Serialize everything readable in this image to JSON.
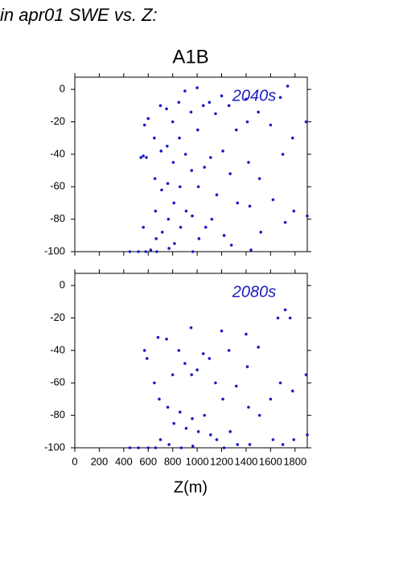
{
  "header": "in apr01 SWE vs. Z:",
  "title": "A1B",
  "chart_data": [
    {
      "type": "scatter",
      "annotation": "2040s",
      "color": "#1c1cc4",
      "xlim": [
        0,
        1900
      ],
      "ylim": [
        -100,
        7.5
      ],
      "yticks": [
        0,
        -20,
        -40,
        -60,
        -80,
        -100
      ],
      "x": [
        450,
        520,
        580,
        620,
        540,
        560,
        585,
        570,
        600,
        560,
        650,
        655,
        660,
        665,
        670,
        700,
        705,
        710,
        715,
        750,
        755,
        760,
        765,
        770,
        800,
        805,
        810,
        815,
        850,
        855,
        860,
        865,
        900,
        905,
        910,
        950,
        955,
        960,
        965,
        1000,
        1005,
        1010,
        1015,
        1050,
        1060,
        1070,
        1100,
        1110,
        1120,
        1150,
        1160,
        1200,
        1210,
        1220,
        1260,
        1270,
        1280,
        1320,
        1330,
        1400,
        1410,
        1420,
        1430,
        1440,
        1500,
        1510,
        1520,
        1600,
        1620,
        1680,
        1700,
        1720,
        1740,
        1780,
        1790,
        1890,
        1900
      ],
      "values": [
        -100,
        -100,
        -100,
        -99,
        -42,
        -41,
        -42,
        -22,
        -18,
        -85,
        -30,
        -55,
        -75,
        -92,
        -100,
        -10,
        -38,
        -62,
        -88,
        -12,
        -35,
        -58,
        -80,
        -98,
        -20,
        -45,
        -70,
        -95,
        -8,
        -30,
        -60,
        -85,
        -1,
        -40,
        -75,
        -14,
        -50,
        -78,
        -100,
        1,
        -25,
        -60,
        -92,
        -10,
        -48,
        -85,
        -8,
        -42,
        -80,
        -15,
        -65,
        -4,
        -38,
        -90,
        -10,
        -52,
        -96,
        -25,
        -70,
        -6,
        -20,
        -45,
        -72,
        -99,
        -14,
        -55,
        -88,
        -22,
        -68,
        -5,
        -40,
        -82,
        2,
        -30,
        -75,
        -20,
        -78
      ]
    },
    {
      "type": "scatter",
      "annotation": "2080s",
      "color": "#1c1cc4",
      "xlim": [
        0,
        1900
      ],
      "ylim": [
        -100,
        7.5
      ],
      "yticks": [
        0,
        -20,
        -40,
        -60,
        -80,
        -100
      ],
      "xticks": [
        0,
        200,
        400,
        600,
        800,
        1000,
        1200,
        1400,
        1600,
        1800
      ],
      "xlabel": "Z(m)",
      "x": [
        450,
        520,
        600,
        570,
        590,
        650,
        660,
        680,
        690,
        700,
        750,
        760,
        770,
        800,
        810,
        850,
        860,
        870,
        900,
        910,
        950,
        955,
        960,
        965,
        1000,
        1010,
        1050,
        1060,
        1100,
        1110,
        1150,
        1160,
        1200,
        1210,
        1220,
        1260,
        1270,
        1320,
        1330,
        1400,
        1410,
        1420,
        1430,
        1500,
        1510,
        1600,
        1620,
        1660,
        1680,
        1700,
        1720,
        1760,
        1780,
        1790,
        1890,
        1900
      ],
      "values": [
        -100,
        -100,
        -100,
        -40,
        -45,
        -60,
        -100,
        -32,
        -70,
        -95,
        -33,
        -75,
        -98,
        -55,
        -85,
        -40,
        -78,
        -100,
        -48,
        -88,
        -26,
        -55,
        -82,
        -99,
        -52,
        -90,
        -42,
        -80,
        -45,
        -92,
        -60,
        -95,
        -28,
        -70,
        -100,
        -40,
        -90,
        -62,
        -98,
        -30,
        -50,
        -75,
        -98,
        -38,
        -80,
        -70,
        -95,
        -20,
        -60,
        -98,
        -15,
        -20,
        -65,
        -95,
        -55,
        -92
      ]
    }
  ]
}
